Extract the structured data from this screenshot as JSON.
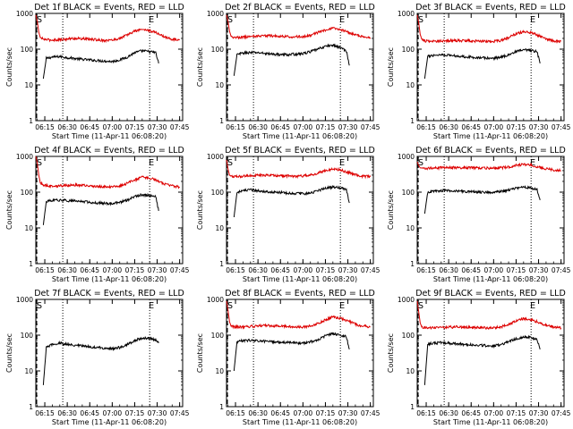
{
  "figure": {
    "xlabel": "Start Time (11-Apr-11 06:08:20)",
    "ylabel": "Counts/sec",
    "yticks": [
      "1",
      "10",
      "100",
      "1000"
    ],
    "xticks": [
      "06:15",
      "06:30",
      "06:45",
      "07:00",
      "07:15",
      "07:30",
      "07:45"
    ],
    "marker_start": "S",
    "marker_end": "E",
    "colors": {
      "events": "#000000",
      "lld": "#dd0000",
      "axes": "#000000",
      "markers": "#000000"
    }
  },
  "chart_data": [
    {
      "type": "line",
      "title": "Det 1f BLACK = Events, RED = LLD",
      "xlim": [
        "06:09",
        "07:47"
      ],
      "ylim": [
        1,
        1000
      ],
      "yscale": "log",
      "grid": false,
      "markers": {
        "S": "06:09",
        "dotted": [
          "06:27",
          "07:25"
        ],
        "E": "07:25"
      },
      "series": [
        {
          "name": "Events",
          "color": "#000000",
          "x": [
            "06:14",
            "06:16",
            "06:20",
            "06:25",
            "06:30",
            "06:40",
            "06:50",
            "07:00",
            "07:05",
            "07:10",
            "07:15",
            "07:20",
            "07:25",
            "07:29",
            "07:31"
          ],
          "y": [
            15,
            55,
            60,
            62,
            58,
            52,
            48,
            45,
            50,
            60,
            80,
            90,
            85,
            80,
            40
          ]
        },
        {
          "name": "LLD",
          "color": "#dd0000",
          "x": [
            "06:09",
            "06:10",
            "06:11",
            "06:12",
            "06:14",
            "06:18",
            "06:25",
            "06:35",
            "06:45",
            "06:55",
            "07:00",
            "07:05",
            "07:10",
            "07:15",
            "07:20",
            "07:25",
            "07:30",
            "07:35",
            "07:40",
            "07:45"
          ],
          "y": [
            900,
            600,
            300,
            210,
            190,
            180,
            185,
            200,
            190,
            175,
            180,
            200,
            250,
            320,
            360,
            330,
            280,
            220,
            190,
            180
          ]
        }
      ]
    },
    {
      "type": "line",
      "title": "Det 2f BLACK = Events, RED = LLD",
      "xlim": [
        "06:09",
        "07:47"
      ],
      "ylim": [
        1,
        1000
      ],
      "yscale": "log",
      "grid": false,
      "markers": {
        "S": "06:09",
        "dotted": [
          "06:27",
          "07:25"
        ],
        "E": "07:25"
      },
      "series": [
        {
          "name": "Events",
          "color": "#000000",
          "x": [
            "06:14",
            "06:16",
            "06:20",
            "06:25",
            "06:30",
            "06:40",
            "06:50",
            "07:00",
            "07:05",
            "07:10",
            "07:15",
            "07:20",
            "07:25",
            "07:29",
            "07:31"
          ],
          "y": [
            18,
            70,
            78,
            80,
            80,
            72,
            70,
            75,
            85,
            100,
            120,
            130,
            110,
            90,
            35
          ]
        },
        {
          "name": "LLD",
          "color": "#dd0000",
          "x": [
            "06:09",
            "06:10",
            "06:11",
            "06:12",
            "06:14",
            "06:18",
            "06:25",
            "06:35",
            "06:45",
            "06:55",
            "07:00",
            "07:05",
            "07:10",
            "07:15",
            "07:20",
            "07:25",
            "07:30",
            "07:35",
            "07:40",
            "07:45"
          ],
          "y": [
            900,
            600,
            320,
            230,
            210,
            215,
            225,
            240,
            230,
            220,
            225,
            245,
            290,
            340,
            380,
            350,
            300,
            250,
            220,
            210
          ]
        }
      ]
    },
    {
      "type": "line",
      "title": "Det 3f BLACK = Events, RED = LLD",
      "xlim": [
        "06:09",
        "07:47"
      ],
      "ylim": [
        1,
        1000
      ],
      "yscale": "log",
      "grid": false,
      "markers": {
        "S": "06:09",
        "dotted": [
          "06:27",
          "07:25"
        ],
        "E": "07:25"
      },
      "series": [
        {
          "name": "Events",
          "color": "#000000",
          "x": [
            "06:14",
            "06:16",
            "06:20",
            "06:25",
            "06:30",
            "06:40",
            "06:50",
            "07:00",
            "07:05",
            "07:10",
            "07:15",
            "07:20",
            "07:25",
            "07:29",
            "07:31"
          ],
          "y": [
            15,
            62,
            68,
            70,
            68,
            62,
            58,
            55,
            60,
            70,
            85,
            95,
            90,
            85,
            40
          ]
        },
        {
          "name": "LLD",
          "color": "#dd0000",
          "x": [
            "06:09",
            "06:10",
            "06:11",
            "06:12",
            "06:14",
            "06:18",
            "06:25",
            "06:35",
            "06:45",
            "06:55",
            "07:00",
            "07:05",
            "07:10",
            "07:15",
            "07:20",
            "07:25",
            "07:30",
            "07:35",
            "07:40",
            "07:45"
          ],
          "y": [
            900,
            550,
            260,
            190,
            170,
            165,
            170,
            175,
            170,
            165,
            165,
            175,
            210,
            270,
            310,
            290,
            240,
            190,
            170,
            165
          ]
        }
      ]
    },
    {
      "type": "line",
      "title": "Det 4f BLACK = Events, RED = LLD",
      "xlim": [
        "06:09",
        "07:47"
      ],
      "ylim": [
        1,
        1000
      ],
      "yscale": "log",
      "grid": false,
      "markers": {
        "S": "06:09",
        "dotted": [
          "06:27",
          "07:25"
        ],
        "E": "07:25"
      },
      "series": [
        {
          "name": "Events",
          "color": "#000000",
          "x": [
            "06:14",
            "06:16",
            "06:20",
            "06:25",
            "06:30",
            "06:40",
            "06:50",
            "07:00",
            "07:05",
            "07:10",
            "07:15",
            "07:20",
            "07:25",
            "07:29",
            "07:31"
          ],
          "y": [
            12,
            55,
            58,
            60,
            58,
            55,
            50,
            48,
            52,
            60,
            75,
            85,
            80,
            75,
            30
          ]
        },
        {
          "name": "LLD",
          "color": "#dd0000",
          "x": [
            "06:09",
            "06:10",
            "06:11",
            "06:12",
            "06:14",
            "06:18",
            "06:25",
            "06:35",
            "06:45",
            "06:55",
            "07:00",
            "07:05",
            "07:10",
            "07:15",
            "07:20",
            "07:25",
            "07:30",
            "07:35",
            "07:40",
            "07:45"
          ],
          "y": [
            1000,
            650,
            300,
            180,
            160,
            150,
            150,
            160,
            150,
            140,
            140,
            150,
            175,
            220,
            260,
            250,
            210,
            170,
            150,
            140
          ]
        }
      ]
    },
    {
      "type": "line",
      "title": "Det 5f BLACK = Events, RED = LLD",
      "xlim": [
        "06:09",
        "07:47"
      ],
      "ylim": [
        1,
        1000
      ],
      "yscale": "log",
      "grid": false,
      "markers": {
        "S": "06:09",
        "dotted": [
          "06:27",
          "07:25"
        ],
        "E": "07:25"
      },
      "series": [
        {
          "name": "Events",
          "color": "#000000",
          "x": [
            "06:14",
            "06:16",
            "06:20",
            "06:25",
            "06:30",
            "06:40",
            "06:50",
            "07:00",
            "07:05",
            "07:10",
            "07:15",
            "07:20",
            "07:25",
            "07:29",
            "07:31"
          ],
          "y": [
            20,
            100,
            110,
            115,
            110,
            100,
            95,
            90,
            95,
            110,
            130,
            140,
            130,
            120,
            50
          ]
        },
        {
          "name": "LLD",
          "color": "#dd0000",
          "x": [
            "06:09",
            "06:10",
            "06:11",
            "06:12",
            "06:14",
            "06:18",
            "06:25",
            "06:35",
            "06:45",
            "06:55",
            "07:00",
            "07:05",
            "07:10",
            "07:15",
            "07:20",
            "07:25",
            "07:30",
            "07:35",
            "07:40",
            "07:45"
          ],
          "y": [
            800,
            450,
            300,
            280,
            270,
            275,
            290,
            300,
            290,
            280,
            285,
            300,
            340,
            400,
            450,
            420,
            360,
            310,
            280,
            270
          ]
        }
      ]
    },
    {
      "type": "line",
      "title": "Det 6f BLACK = Events, RED = LLD",
      "xlim": [
        "06:09",
        "07:47"
      ],
      "ylim": [
        1,
        1000
      ],
      "yscale": "log",
      "grid": false,
      "markers": {
        "S": "06:09",
        "dotted": [
          "06:27",
          "07:25"
        ],
        "E": "07:25"
      },
      "series": [
        {
          "name": "Events",
          "color": "#000000",
          "x": [
            "06:14",
            "06:16",
            "06:20",
            "06:25",
            "06:30",
            "06:40",
            "06:50",
            "07:00",
            "07:05",
            "07:10",
            "07:15",
            "07:20",
            "07:25",
            "07:29",
            "07:31"
          ],
          "y": [
            25,
            100,
            105,
            110,
            110,
            105,
            100,
            100,
            105,
            115,
            130,
            140,
            130,
            120,
            60
          ]
        },
        {
          "name": "LLD",
          "color": "#dd0000",
          "x": [
            "06:09",
            "06:10",
            "06:11",
            "06:12",
            "06:14",
            "06:18",
            "06:25",
            "06:35",
            "06:45",
            "06:55",
            "07:00",
            "07:05",
            "07:10",
            "07:15",
            "07:20",
            "07:25",
            "07:30",
            "07:35",
            "07:40",
            "07:45"
          ],
          "y": [
            700,
            550,
            480,
            470,
            460,
            470,
            480,
            490,
            480,
            470,
            470,
            480,
            510,
            560,
            590,
            560,
            500,
            450,
            420,
            400
          ]
        }
      ]
    },
    {
      "type": "line",
      "title": "Det 7f BLACK = Events, RED = LLD",
      "xlim": [
        "06:09",
        "07:47"
      ],
      "ylim": [
        1,
        1000
      ],
      "yscale": "log",
      "grid": false,
      "markers": {
        "S": "06:09",
        "dotted": [
          "06:27",
          "07:25"
        ],
        "E": "07:25"
      },
      "series": [
        {
          "name": "Events",
          "color": "#000000",
          "x": [
            "06:14",
            "06:16",
            "06:20",
            "06:25",
            "06:30",
            "06:40",
            "06:50",
            "07:00",
            "07:05",
            "07:10",
            "07:15",
            "07:20",
            "07:25",
            "07:29",
            "07:31"
          ],
          "y": [
            4,
            45,
            55,
            60,
            55,
            50,
            45,
            42,
            45,
            55,
            70,
            85,
            80,
            75,
            60
          ]
        }
      ]
    },
    {
      "type": "line",
      "title": "Det 8f BLACK = Events, RED = LLD",
      "xlim": [
        "06:09",
        "07:47"
      ],
      "ylim": [
        1,
        1000
      ],
      "yscale": "log",
      "grid": false,
      "markers": {
        "S": "06:09",
        "dotted": [
          "06:27",
          "07:25"
        ],
        "E": "07:25"
      },
      "series": [
        {
          "name": "Events",
          "color": "#000000",
          "x": [
            "06:14",
            "06:16",
            "06:20",
            "06:25",
            "06:30",
            "06:40",
            "06:50",
            "07:00",
            "07:05",
            "07:10",
            "07:15",
            "07:20",
            "07:25",
            "07:29",
            "07:31"
          ],
          "y": [
            10,
            65,
            70,
            72,
            70,
            65,
            62,
            60,
            65,
            75,
            95,
            110,
            100,
            90,
            40
          ]
        },
        {
          "name": "LLD",
          "color": "#dd0000",
          "x": [
            "06:09",
            "06:10",
            "06:11",
            "06:12",
            "06:14",
            "06:18",
            "06:25",
            "06:35",
            "06:45",
            "06:55",
            "07:00",
            "07:05",
            "07:10",
            "07:15",
            "07:20",
            "07:25",
            "07:30",
            "07:35",
            "07:40",
            "07:45"
          ],
          "y": [
            900,
            500,
            240,
            180,
            170,
            170,
            175,
            185,
            180,
            170,
            170,
            180,
            210,
            270,
            320,
            300,
            250,
            200,
            180,
            170
          ]
        }
      ]
    },
    {
      "type": "line",
      "title": "Det 9f BLACK = Events, RED = LLD",
      "xlim": [
        "06:09",
        "07:47"
      ],
      "ylim": [
        1,
        1000
      ],
      "yscale": "log",
      "grid": false,
      "markers": {
        "S": "06:09",
        "dotted": [
          "06:27",
          "07:25"
        ],
        "E": "07:25"
      },
      "series": [
        {
          "name": "Events",
          "color": "#000000",
          "x": [
            "06:14",
            "06:16",
            "06:20",
            "06:25",
            "06:30",
            "06:40",
            "06:50",
            "07:00",
            "07:05",
            "07:10",
            "07:15",
            "07:20",
            "07:25",
            "07:29",
            "07:31"
          ],
          "y": [
            4,
            55,
            60,
            62,
            60,
            55,
            52,
            50,
            55,
            65,
            80,
            90,
            85,
            75,
            40
          ]
        },
        {
          "name": "LLD",
          "color": "#dd0000",
          "x": [
            "06:09",
            "06:10",
            "06:11",
            "06:12",
            "06:14",
            "06:18",
            "06:25",
            "06:35",
            "06:45",
            "06:55",
            "07:00",
            "07:05",
            "07:10",
            "07:15",
            "07:20",
            "07:25",
            "07:30",
            "07:35",
            "07:40",
            "07:45"
          ],
          "y": [
            900,
            450,
            220,
            170,
            160,
            160,
            165,
            170,
            165,
            160,
            160,
            170,
            200,
            250,
            290,
            270,
            230,
            190,
            170,
            160
          ]
        }
      ]
    }
  ]
}
